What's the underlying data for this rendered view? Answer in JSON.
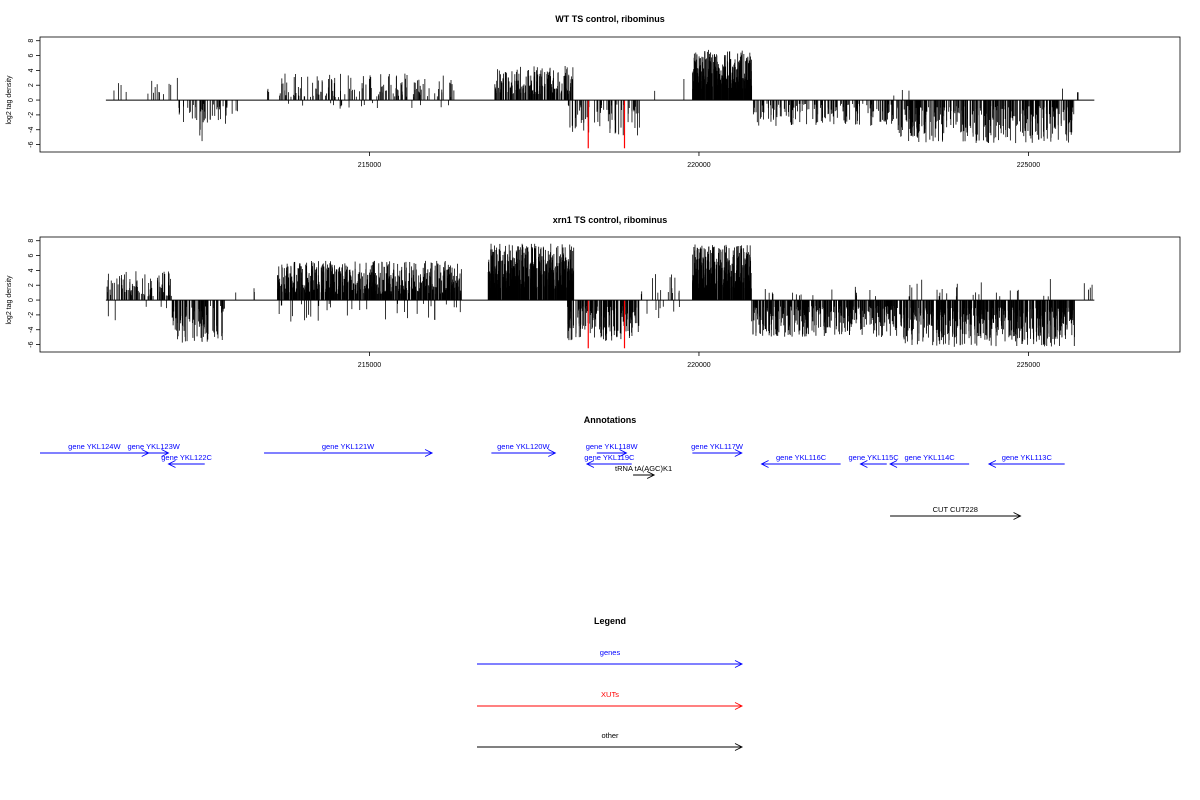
{
  "chart_data": [
    {
      "type": "bar",
      "title": "WT TS control, ribominus",
      "ylabel": "log2 tag density",
      "xlim": [
        210000,
        227300
      ],
      "ylim": [
        -7,
        8.5
      ],
      "yticks": [
        8,
        6,
        4,
        2,
        0,
        -2,
        -4,
        -6
      ],
      "xticks": [
        215000,
        220000,
        225000
      ],
      "xtick_labels": [
        "215000",
        "220000",
        "225000"
      ],
      "baseline": [
        211000,
        226000
      ],
      "highlight_color": "#ff0000",
      "highlights": [
        {
          "x": 218320,
          "y": -6.5
        },
        {
          "x": 218870,
          "y": -6.5
        }
      ],
      "regions": [
        {
          "x0": 211000,
          "x1": 212100,
          "sign": 1,
          "density": 0.012,
          "min": 0.6,
          "max": 2.6
        },
        {
          "x0": 211900,
          "x1": 212100,
          "sign": 1,
          "density": 0.01,
          "min": 1.5,
          "max": 3.3
        },
        {
          "x0": 212100,
          "x1": 213000,
          "sign": -1,
          "density": 0.05,
          "min": 0.5,
          "max": 3.2
        },
        {
          "x0": 212400,
          "x1": 212500,
          "sign": -1,
          "density": 0.03,
          "min": 4.0,
          "max": 5.9
        },
        {
          "x0": 213000,
          "x1": 213700,
          "sign": 1,
          "density": 0.004,
          "min": 0.8,
          "max": 1.6
        },
        {
          "x0": 213600,
          "x1": 216300,
          "sign": 1,
          "density": 0.05,
          "min": 0.4,
          "max": 3.6
        },
        {
          "x0": 213600,
          "x1": 216300,
          "sign": -1,
          "density": 0.006,
          "min": 0.4,
          "max": 1.2
        },
        {
          "x0": 216900,
          "x1": 218100,
          "sign": 1,
          "density": 0.15,
          "min": 0.8,
          "max": 4.6
        },
        {
          "x0": 218000,
          "x1": 219100,
          "sign": -1,
          "density": 0.06,
          "min": 0.6,
          "max": 5.0
        },
        {
          "x0": 219000,
          "x1": 219800,
          "sign": 1,
          "density": 0.003,
          "min": 1.0,
          "max": 3.5
        },
        {
          "x0": 219900,
          "x1": 220800,
          "sign": 1,
          "density": 0.35,
          "min": 1.5,
          "max": 6.8
        },
        {
          "x0": 220800,
          "x1": 223000,
          "sign": -1,
          "density": 0.07,
          "min": 0.5,
          "max": 3.5
        },
        {
          "x0": 222700,
          "x1": 223200,
          "sign": 1,
          "density": 0.005,
          "min": 0.6,
          "max": 1.6
        },
        {
          "x0": 223000,
          "x1": 225700,
          "sign": -1,
          "density": 0.12,
          "min": 0.8,
          "max": 5.8
        },
        {
          "x0": 225500,
          "x1": 226000,
          "sign": 1,
          "density": 0.005,
          "min": 0.8,
          "max": 1.8
        }
      ]
    },
    {
      "type": "bar",
      "title": "xrn1 TS control, ribominus",
      "ylabel": "log2 tag density",
      "xlim": [
        210000,
        227300
      ],
      "ylim": [
        -7,
        8.5
      ],
      "yticks": [
        8,
        6,
        4,
        2,
        0,
        -2,
        -4,
        -6
      ],
      "xticks": [
        215000,
        220000,
        225000
      ],
      "xtick_labels": [
        "215000",
        "220000",
        "225000"
      ],
      "baseline": [
        211000,
        226000
      ],
      "highlight_color": "#ff0000",
      "highlights": [
        {
          "x": 218320,
          "y": -6.5
        },
        {
          "x": 218870,
          "y": -6.5
        }
      ],
      "regions": [
        {
          "x0": 211000,
          "x1": 212000,
          "sign": 1,
          "density": 0.08,
          "min": 0.5,
          "max": 4.0
        },
        {
          "x0": 211000,
          "x1": 212000,
          "sign": -1,
          "density": 0.005,
          "min": 0.5,
          "max": 3.0
        },
        {
          "x0": 212000,
          "x1": 212800,
          "sign": -1,
          "density": 0.12,
          "min": 0.8,
          "max": 5.8
        },
        {
          "x0": 212800,
          "x1": 213500,
          "sign": 1,
          "density": 0.004,
          "min": 0.8,
          "max": 1.6
        },
        {
          "x0": 213600,
          "x1": 216400,
          "sign": 1,
          "density": 0.2,
          "min": 0.8,
          "max": 5.3
        },
        {
          "x0": 213600,
          "x1": 216400,
          "sign": -1,
          "density": 0.012,
          "min": 0.5,
          "max": 3.0
        },
        {
          "x0": 216800,
          "x1": 218100,
          "sign": 1,
          "density": 0.35,
          "min": 1.5,
          "max": 7.6
        },
        {
          "x0": 218000,
          "x1": 219100,
          "sign": -1,
          "density": 0.15,
          "min": 0.8,
          "max": 5.5
        },
        {
          "x0": 219100,
          "x1": 219800,
          "sign": 1,
          "density": 0.02,
          "min": 0.8,
          "max": 3.5
        },
        {
          "x0": 219100,
          "x1": 219800,
          "sign": -1,
          "density": 0.01,
          "min": 0.8,
          "max": 2.5
        },
        {
          "x0": 219900,
          "x1": 220800,
          "sign": 1,
          "density": 0.35,
          "min": 1.5,
          "max": 7.5
        },
        {
          "x0": 220800,
          "x1": 223100,
          "sign": -1,
          "density": 0.16,
          "min": 0.8,
          "max": 5.0
        },
        {
          "x0": 221000,
          "x1": 223000,
          "sign": 1,
          "density": 0.008,
          "min": 0.5,
          "max": 1.8
        },
        {
          "x0": 223100,
          "x1": 225700,
          "sign": -1,
          "density": 0.2,
          "min": 1.0,
          "max": 6.3
        },
        {
          "x0": 223100,
          "x1": 226000,
          "sign": 1,
          "density": 0.01,
          "min": 0.5,
          "max": 3.0
        }
      ]
    }
  ],
  "annotations": {
    "title": "Annotations",
    "xlim": [
      210000,
      227300
    ],
    "items": [
      {
        "label": "gene YKL124W",
        "start": 210000,
        "end": 211650,
        "dir": 1,
        "row": 0,
        "color": "#0000ff"
      },
      {
        "label": "gene YKL123W",
        "start": 211500,
        "end": 211950,
        "dir": 1,
        "row": 0,
        "color": "#0000ff"
      },
      {
        "label": "gene YKL122C",
        "start": 212500,
        "end": 211950,
        "dir": -1,
        "row": 1,
        "color": "#0000ff"
      },
      {
        "label": "gene YKL121W",
        "start": 213400,
        "end": 215950,
        "dir": 1,
        "row": 0,
        "color": "#0000ff"
      },
      {
        "label": "gene YKL120W",
        "start": 216850,
        "end": 217820,
        "dir": 1,
        "row": 0,
        "color": "#0000ff"
      },
      {
        "label": "gene YKL119C",
        "start": 218980,
        "end": 218300,
        "dir": -1,
        "row": 1,
        "color": "#0000ff"
      },
      {
        "label": "gene YKL118W",
        "start": 218450,
        "end": 218900,
        "dir": 1,
        "row": 0,
        "color": "#0000ff"
      },
      {
        "label": "tRNA tA(AGC)K1",
        "start": 219000,
        "end": 219320,
        "dir": 1,
        "row": 2,
        "color": "#000000"
      },
      {
        "label": "gene YKL117W",
        "start": 219900,
        "end": 220650,
        "dir": 1,
        "row": 0,
        "color": "#0000ff"
      },
      {
        "label": "gene YKL116C",
        "start": 222150,
        "end": 220950,
        "dir": -1,
        "row": 1,
        "color": "#0000ff"
      },
      {
        "label": "gene YKL115C",
        "start": 222850,
        "end": 222450,
        "dir": -1,
        "row": 1,
        "color": "#0000ff"
      },
      {
        "label": "gene YKL114C",
        "start": 224100,
        "end": 222900,
        "dir": -1,
        "row": 1,
        "color": "#0000ff"
      },
      {
        "label": "gene YKL113C",
        "start": 225550,
        "end": 224400,
        "dir": -1,
        "row": 1,
        "color": "#0000ff"
      },
      {
        "label": "CUT CUT228",
        "start": 222900,
        "end": 224880,
        "dir": 1,
        "row": 3,
        "color": "#000000"
      }
    ]
  },
  "legend": {
    "title": "Legend",
    "items": [
      {
        "label": "genes",
        "color": "#0000ff"
      },
      {
        "label": "XUTs",
        "color": "#ff0000"
      },
      {
        "label": "other",
        "color": "#000000"
      }
    ]
  }
}
